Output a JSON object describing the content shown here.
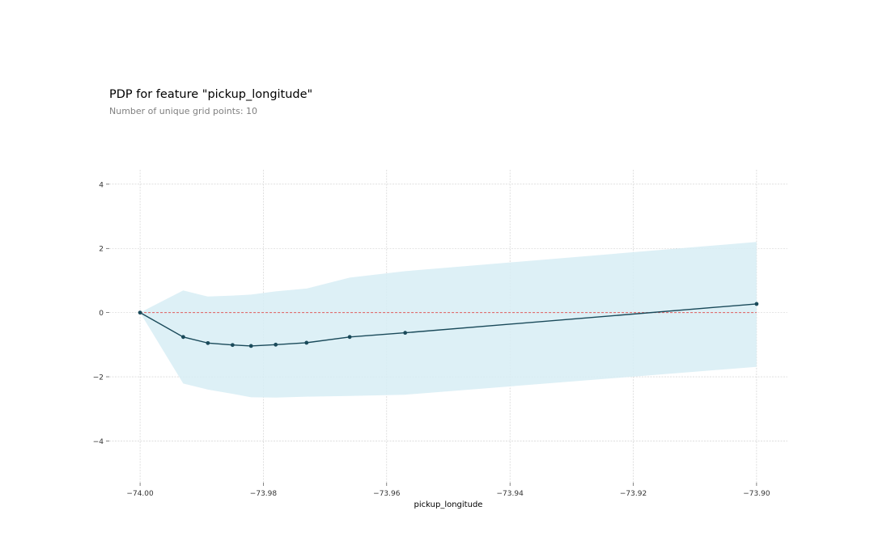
{
  "header": {
    "title": "PDP for feature \"pickup_longitude\"",
    "subtitle": "Number of unique grid points: 10"
  },
  "chart_data": {
    "type": "line",
    "xlabel": "pickup_longitude",
    "ylabel": "",
    "xlim": [
      -74.005,
      -73.895
    ],
    "ylim": [
      -5.3,
      4.45
    ],
    "x_ticks": [
      -74.0,
      -73.98,
      -73.96,
      -73.94,
      -73.92,
      -73.9
    ],
    "x_tick_labels": [
      "−74.00",
      "−73.98",
      "−73.96",
      "−73.94",
      "−73.92",
      "−73.90"
    ],
    "y_ticks": [
      -4,
      -2,
      0,
      2,
      4
    ],
    "y_tick_labels": [
      "−4",
      "−2",
      "0",
      "2",
      "4"
    ],
    "grid": true,
    "series": [
      {
        "role": "pdp",
        "x": [
          -74.0,
          -73.993,
          -73.989,
          -73.985,
          -73.982,
          -73.978,
          -73.973,
          -73.966,
          -73.957,
          -73.9
        ],
        "values": [
          0,
          -0.76,
          -0.95,
          -1.01,
          -1.04,
          -1.0,
          -0.94,
          -0.76,
          -0.63,
          0.27
        ],
        "upper": [
          0,
          0.69,
          0.5,
          0.53,
          0.56,
          0.66,
          0.75,
          1.09,
          1.29,
          2.2
        ],
        "lower": [
          0,
          -2.21,
          -2.4,
          -2.53,
          -2.64,
          -2.65,
          -2.62,
          -2.6,
          -2.56,
          -1.69
        ]
      }
    ],
    "baseline": 0,
    "colors": {
      "line": "#1a4a5a",
      "band": "#d7edf4",
      "baseline": "#e05c5c",
      "grid": "#cccccc"
    }
  }
}
